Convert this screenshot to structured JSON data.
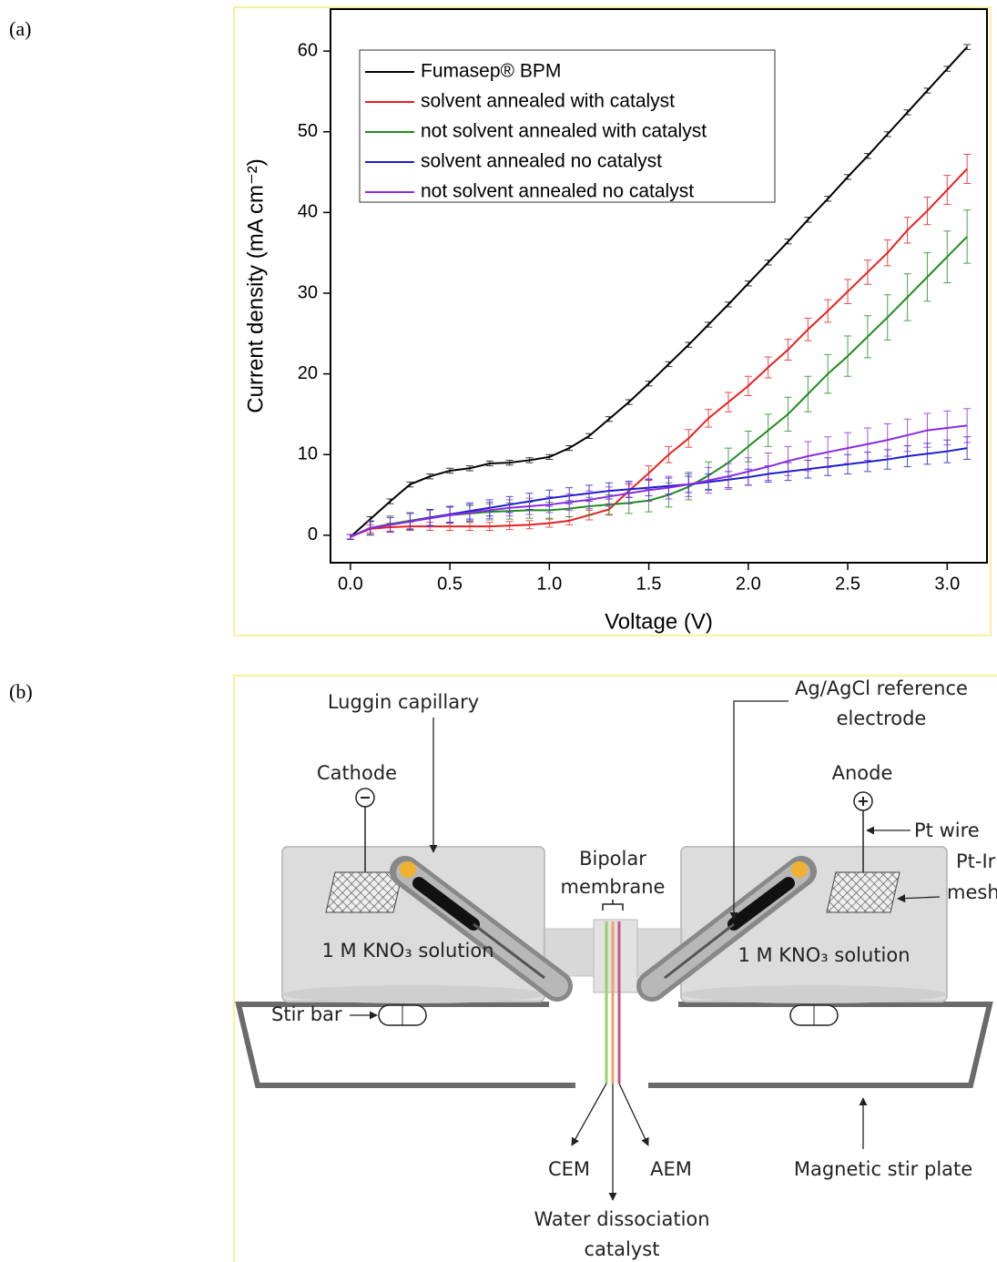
{
  "panel_labels": [
    "(a)",
    "(b)"
  ],
  "chart_data": {
    "type": "line",
    "x_label": "Voltage (V)",
    "y_label": "Current density (mA cm⁻²)",
    "xlim": [
      -0.1,
      3.2
    ],
    "ylim": [
      -3.4,
      65.2
    ],
    "xticks": [
      {
        "value": 0,
        "label": "0.0"
      },
      0.5,
      {
        "value": 1,
        "label": "1.0"
      },
      1.5,
      {
        "value": 2,
        "label": "2.0"
      },
      2.5,
      {
        "value": 3,
        "label": "3.0"
      }
    ],
    "yticks": [
      0,
      10,
      20,
      30,
      40,
      50,
      60
    ],
    "legend": "upper left",
    "x": [
      0,
      0.1,
      0.2,
      0.3,
      0.4,
      0.5,
      0.6,
      0.7,
      0.8,
      0.9,
      1.0,
      1.1,
      1.2,
      1.3,
      1.4,
      1.5,
      1.6,
      1.7,
      1.8,
      1.9,
      2.0,
      2.1,
      2.2,
      2.3,
      2.4,
      2.5,
      2.6,
      2.7,
      2.8,
      2.9,
      3.0,
      3.1
    ],
    "series": [
      {
        "name": "Fumasep® BPM",
        "color": "#000000",
        "values": [
          -0.2,
          2,
          4.2,
          6.3,
          7.3,
          8,
          8.3,
          8.9,
          9,
          9.3,
          9.7,
          10.8,
          12.3,
          14.4,
          16.5,
          18.8,
          21.2,
          23.6,
          26.1,
          28.6,
          31.2,
          33.8,
          36.4,
          39.1,
          41.7,
          44.4,
          47,
          49.7,
          52.4,
          55.1,
          57.8,
          60.5
        ],
        "errors": [
          0.3,
          0.3,
          0.3,
          0.3,
          0.3,
          0.3,
          0.3,
          0.3,
          0.3,
          0.3,
          0.3,
          0.3,
          0.3,
          0.3,
          0.3,
          0.3,
          0.3,
          0.3,
          0.3,
          0.3,
          0.3,
          0.3,
          0.3,
          0.3,
          0.3,
          0.3,
          0.3,
          0.3,
          0.3,
          0.3,
          0.3,
          0.3
        ]
      },
      {
        "name": "solvent annealed with catalyst",
        "color": "#e8201e",
        "values": [
          -0.2,
          0.8,
          1,
          1.1,
          1.1,
          1.1,
          1.1,
          1.1,
          1.2,
          1.3,
          1.5,
          1.8,
          2.5,
          3.2,
          5.5,
          7.7,
          10,
          12,
          14.5,
          16.5,
          18.5,
          20.8,
          23,
          25.5,
          27.8,
          30.2,
          32.6,
          35,
          37.8,
          40.2,
          42.8,
          45.4
        ],
        "errors": [
          0.3,
          0.5,
          0.5,
          0.5,
          0.5,
          0.5,
          0.5,
          0.5,
          0.5,
          0.5,
          0.5,
          0.5,
          0.6,
          0.7,
          0.8,
          0.9,
          1,
          1.1,
          1.1,
          1.2,
          1.2,
          1.3,
          1.3,
          1.4,
          1.4,
          1.5,
          1.5,
          1.6,
          1.6,
          1.7,
          1.8,
          1.8
        ]
      },
      {
        "name": "not solvent annealed with catalyst",
        "color": "#1e8c1e",
        "values": [
          -0.2,
          0.9,
          1.4,
          1.8,
          2.2,
          2.5,
          2.7,
          2.9,
          3,
          3.1,
          3.1,
          3.3,
          3.6,
          3.8,
          4,
          4.3,
          5,
          6,
          7.4,
          9,
          11,
          13,
          15,
          17.5,
          20,
          22.2,
          24.6,
          27,
          29.5,
          32,
          34.5,
          37
        ],
        "errors": [
          0.3,
          0.9,
          1,
          1,
          1,
          1,
          1,
          1,
          1,
          1,
          1,
          1,
          1.1,
          1.2,
          1.3,
          1.4,
          1.5,
          1.6,
          1.7,
          1.8,
          1.9,
          2,
          2.1,
          2.2,
          2.4,
          2.5,
          2.6,
          2.8,
          2.9,
          3,
          3.2,
          3.3
        ]
      },
      {
        "name": "solvent annealed no catalyst",
        "color": "#1c1ccc",
        "values": [
          -0.2,
          0.9,
          1.3,
          1.7,
          2.2,
          2.6,
          3,
          3.4,
          3.8,
          4.2,
          4.6,
          4.9,
          5.2,
          5.5,
          5.7,
          5.9,
          6.1,
          6.3,
          6.6,
          6.9,
          7.2,
          7.6,
          7.9,
          8.2,
          8.5,
          8.8,
          9.1,
          9.4,
          9.8,
          10.1,
          10.4,
          10.8
        ],
        "errors": [
          0.3,
          0.8,
          0.9,
          1,
          1,
          1,
          1,
          1,
          1,
          1,
          1,
          1,
          1,
          1,
          1,
          1,
          1,
          1,
          1,
          1,
          1,
          1,
          1.1,
          1.1,
          1.1,
          1.2,
          1.2,
          1.2,
          1.3,
          1.3,
          1.4,
          1.4
        ]
      },
      {
        "name": "not solvent annealed no catalyst",
        "color": "#8a2be2",
        "values": [
          -0.2,
          0.9,
          1.3,
          1.7,
          2.1,
          2.5,
          2.8,
          3.1,
          3.4,
          3.6,
          3.8,
          4.1,
          4.4,
          4.8,
          5.2,
          5.6,
          5.9,
          6.3,
          6.8,
          7.3,
          7.9,
          8.5,
          9.2,
          9.8,
          10.3,
          10.8,
          11.3,
          11.8,
          12.4,
          13,
          13.3,
          13.6
        ],
        "errors": [
          0.3,
          0.8,
          0.9,
          1,
          1,
          1,
          1,
          1,
          1,
          1,
          1,
          1,
          1.1,
          1.2,
          1.3,
          1.4,
          1.4,
          1.5,
          1.6,
          1.6,
          1.7,
          1.7,
          1.8,
          1.8,
          1.9,
          1.9,
          2,
          2,
          2,
          2.1,
          2.1,
          2.1
        ]
      }
    ]
  },
  "diagram": {
    "luggin": "Luggin capillary",
    "reference": [
      "Ag/AgCl reference",
      "electrode"
    ],
    "cathode": "Cathode",
    "anode": "Anode",
    "pt_wire": "Pt wire",
    "membrane": [
      "Bipolar",
      "membrane"
    ],
    "mesh": [
      "Pt-Ir",
      "mesh"
    ],
    "solution_left": "1 M KNO₃ solution",
    "solution_right": "1 M KNO₃ solution",
    "stir_bar": "Stir bar",
    "cem": "CEM",
    "aem": "AEM",
    "catalyst": [
      "Water dissociation",
      "catalyst"
    ],
    "stir_plate": "Magnetic stir plate"
  }
}
